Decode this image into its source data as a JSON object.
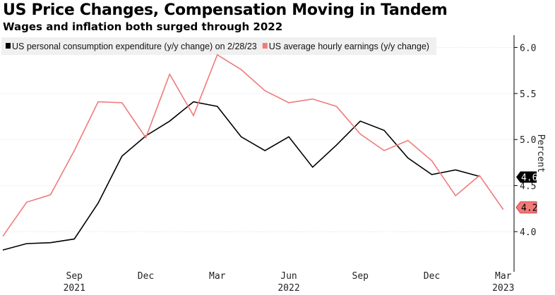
{
  "chart_data": {
    "type": "line",
    "title": "US Price Changes, Compensation Moving in Tandem",
    "subtitle": "Wages and inflation both surged through 2022",
    "ylabel": "Percent",
    "ylim": [
      3.7,
      6.1
    ],
    "yticks": [
      "4.0",
      "4.5",
      "5.0",
      "5.5",
      "6.0"
    ],
    "y_axis_side": "right",
    "grid": "horizontal dotted",
    "legend_placement": "top-left",
    "x": [
      "2021-06",
      "2021-07",
      "2021-08",
      "2021-09",
      "2021-10",
      "2021-11",
      "2021-12",
      "2022-01",
      "2022-02",
      "2022-03",
      "2022-04",
      "2022-05",
      "2022-06",
      "2022-07",
      "2022-08",
      "2022-09",
      "2022-10",
      "2022-11",
      "2022-12",
      "2023-01",
      "2023-02",
      "2023-03"
    ],
    "xticks": [
      {
        "month": "Sep",
        "year": "2021",
        "x": "2021-09"
      },
      {
        "month": "Dec",
        "year": "",
        "x": "2021-12"
      },
      {
        "month": "Mar",
        "year": "",
        "x": "2022-03"
      },
      {
        "month": "Jun",
        "year": "2022",
        "x": "2022-06"
      },
      {
        "month": "Sep",
        "year": "",
        "x": "2022-09"
      },
      {
        "month": "Dec",
        "year": "",
        "x": "2022-12"
      },
      {
        "month": "Mar",
        "year": "2023",
        "x": "2023-03"
      }
    ],
    "series": [
      {
        "name": "US personal consumption expenditure (y/y change) on 2/28/23",
        "color": "#000000",
        "values": [
          3.8,
          3.87,
          3.88,
          3.92,
          4.31,
          4.82,
          5.04,
          5.2,
          5.41,
          5.36,
          5.03,
          4.88,
          5.03,
          4.7,
          4.94,
          5.2,
          5.1,
          4.8,
          4.62,
          4.67,
          4.6,
          null
        ],
        "last_label": "4.6"
      },
      {
        "name": "US average hourly earnings (y/y change)",
        "color": "#f07a7a",
        "values": [
          3.95,
          4.32,
          4.4,
          4.88,
          5.41,
          5.4,
          5.02,
          5.71,
          5.26,
          5.92,
          5.76,
          5.53,
          5.4,
          5.44,
          5.36,
          5.06,
          4.88,
          4.99,
          4.77,
          4.39,
          4.61,
          4.24
        ],
        "last_label": "4.2"
      }
    ]
  }
}
